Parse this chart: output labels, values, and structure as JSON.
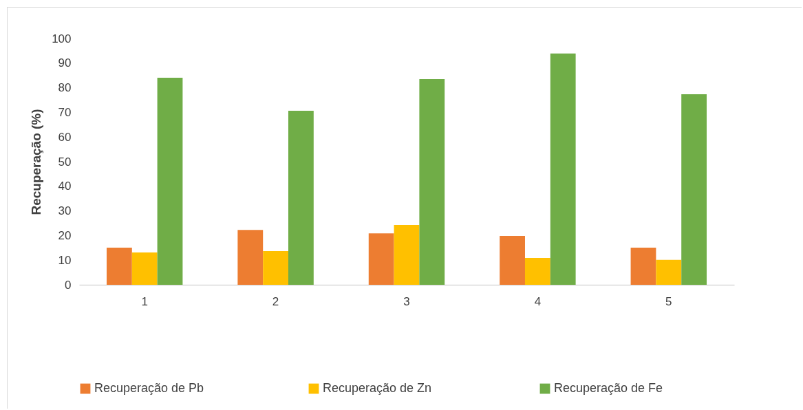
{
  "chart_data": {
    "type": "bar",
    "ylabel": "Recuperação (%)",
    "categories": [
      "1",
      "2",
      "3",
      "4",
      "5"
    ],
    "series": [
      {
        "name": "Recuperação de Pb",
        "color": "#ed7d31",
        "values": [
          15.1,
          22.3,
          20.9,
          19.8,
          15.1
        ]
      },
      {
        "name": "Recuperação de  Zn",
        "color": "#ffc000",
        "values": [
          13.1,
          13.7,
          24.3,
          10.9,
          10.1
        ]
      },
      {
        "name": "Recuperação de Fe",
        "color": "#70ad47",
        "values": [
          84.1,
          70.7,
          83.5,
          93.9,
          77.4
        ]
      }
    ],
    "ylim": [
      0,
      100
    ],
    "yticks": [
      0,
      10,
      20,
      30,
      40,
      50,
      60,
      70,
      80,
      90,
      100
    ],
    "grid": false,
    "legend": "bottom"
  }
}
